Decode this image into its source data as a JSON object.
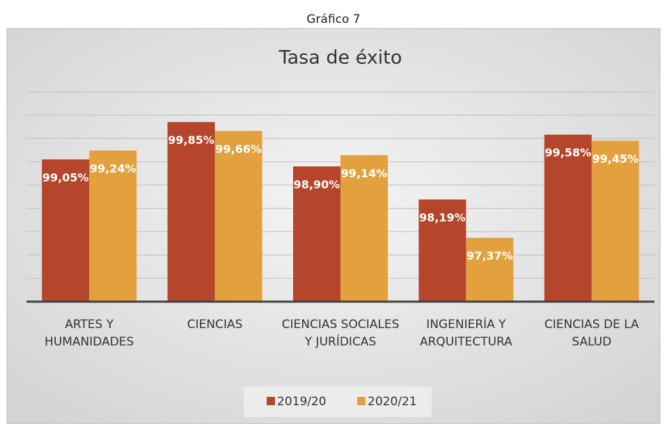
{
  "header": "Gráfico 7",
  "chart_data": {
    "type": "bar",
    "title": "Tasa de éxito",
    "categories": [
      "ARTES Y HUMANIDADES",
      "CIENCIAS",
      "CIENCIAS SOCIALES Y JURÍDICAS",
      "INGENIERÍA Y ARQUITECTURA",
      "CIENCIAS DE LA SALUD"
    ],
    "series": [
      {
        "name": "2019/20",
        "color": "#b5452b",
        "values": [
          99.05,
          99.85,
          98.9,
          98.19,
          99.58
        ],
        "value_labels": [
          "99,05%",
          "99,85%",
          "98,90%",
          "98,19%",
          "99,58%"
        ]
      },
      {
        "name": "2020/21",
        "color": "#e3a13e",
        "values": [
          99.24,
          99.66,
          99.14,
          97.37,
          99.45
        ],
        "value_labels": [
          "99,24%",
          "99,66%",
          "99,14%",
          "97,37%",
          "99,45%"
        ]
      }
    ],
    "ylim": [
      96,
      100.5
    ],
    "yticks": [
      96,
      96.5,
      97,
      97.5,
      98,
      98.5,
      99,
      99.5,
      100,
      100.5
    ],
    "grid": true,
    "legend": "bottom"
  }
}
